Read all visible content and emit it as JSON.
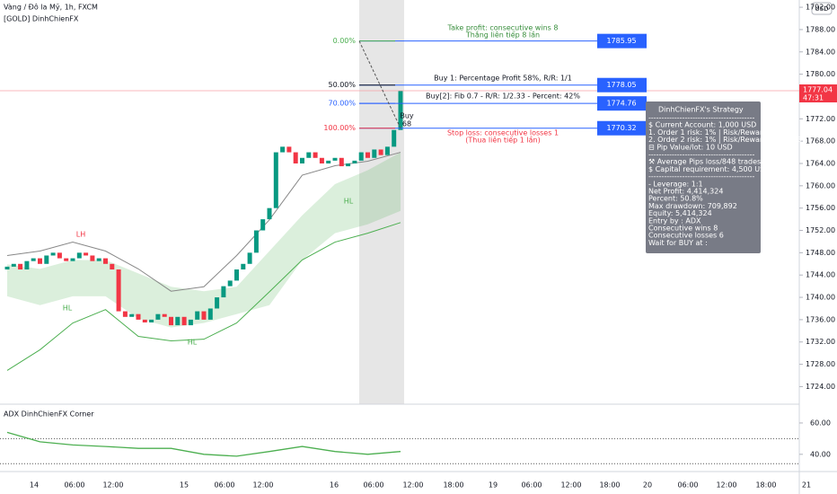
{
  "chart_data": {
    "type": "candlestick",
    "title": "Vàng / Đô la Mỹ, 1h, FXCM",
    "subtitle": "[GOLD] DinhChienFX",
    "currency": "USD",
    "ylim": [
      1720.85,
      1793.3
    ],
    "yticks": [
      {
        "value": 1792,
        "label": "1792.00"
      },
      {
        "value": 1788,
        "label": "1788.00"
      },
      {
        "value": 1784,
        "label": "1784.00"
      },
      {
        "value": 1780,
        "label": "1780.00"
      },
      {
        "value": 1772,
        "label": "1772.00"
      },
      {
        "value": 1768,
        "label": "1768.00"
      },
      {
        "value": 1764,
        "label": "1764.00"
      },
      {
        "value": 1760,
        "label": "1760.00"
      },
      {
        "value": 1756,
        "label": "1756.00"
      },
      {
        "value": 1752,
        "label": "1752.00"
      },
      {
        "value": 1748,
        "label": "1748.00"
      },
      {
        "value": 1744,
        "label": "1744.00"
      },
      {
        "value": 1740,
        "label": "1740.00"
      },
      {
        "value": 1736,
        "label": "1736.00"
      },
      {
        "value": 1732,
        "label": "1732.00"
      },
      {
        "value": 1728,
        "label": "1728.00"
      },
      {
        "value": 1724,
        "label": "1724.00"
      }
    ],
    "x_labels": [
      "14",
      "06:00",
      "12:00",
      "15",
      "06:00",
      "12:00",
      "16",
      "06:00",
      "12:00",
      "18:00",
      "19",
      "06:00",
      "12:00",
      "18:00",
      "20",
      "06:00",
      "12:00",
      "18:00",
      "21"
    ],
    "up_color": "#089981",
    "down_color": "#f23645",
    "open": 1745,
    "closes": [
      1745.5,
      1746,
      1745,
      1746.5,
      1747,
      1746,
      1747.5,
      1748,
      1747,
      1746.5,
      1747,
      1748,
      1747.5,
      1746.5,
      1747,
      1746,
      1745,
      1737.5,
      1736.5,
      1737,
      1736,
      1735.5,
      1736,
      1737,
      1736.5,
      1735,
      1736.5,
      1735,
      1736,
      1737.5,
      1736,
      1738,
      1740,
      1742,
      1743,
      1745,
      1746,
      1748,
      1752,
      1754,
      1756,
      1766,
      1767,
      1766,
      1764,
      1765,
      1766,
      1765,
      1764,
      1764.5,
      1765,
      1763.5,
      1764,
      1764.5,
      1766,
      1765,
      1766.5,
      1765.5,
      1767,
      1770,
      1777.04
    ],
    "last_price_countdown": "47:31",
    "bands": {
      "index": [
        0,
        5,
        10,
        15,
        20,
        25,
        30,
        35,
        40,
        45,
        50,
        55,
        60
      ],
      "upper_line": [
        1747.5,
        1748.3,
        1749.9,
        1748.3,
        1745.1,
        1741.1,
        1741.9,
        1747.5,
        1753.9,
        1761.9,
        1763.6,
        1764.4,
        1766.0
      ],
      "lower_line": [
        1726.9,
        1730.6,
        1735.4,
        1737.8,
        1733.0,
        1732.2,
        1732.5,
        1735.4,
        1741.0,
        1746.7,
        1749.9,
        1751.5,
        1753.4
      ],
      "zone_top": [
        1745.9,
        1745.1,
        1746.7,
        1746.7,
        1744.3,
        1741.9,
        1741.1,
        1741.9,
        1748.3,
        1754.7,
        1760.3,
        1762.8,
        1766.0
      ],
      "zone_bottom": [
        1740.2,
        1738.6,
        1740.2,
        1740.2,
        1736.2,
        1734.6,
        1735.4,
        1737.0,
        1738.6,
        1746.7,
        1751.5,
        1753.1,
        1755.5
      ]
    },
    "levels": [
      {
        "label": "0.00%",
        "value": 1785.95,
        "color": "#4caf50"
      },
      {
        "label": "50.00%",
        "value": 1778.05,
        "color": "#131722"
      },
      {
        "label": "70.00%",
        "value": 1774.76,
        "color": "#2962ff"
      },
      {
        "label": "100.00%",
        "value": 1770.32,
        "color": "#f23645"
      }
    ],
    "annotations": [
      {
        "text": "Take profit: consecutive wins 8",
        "color": "#388e3c"
      },
      {
        "text": "Thắng liên tiếp 8 lần",
        "color": "#388e3c"
      },
      {
        "text": "Buy 1: Percentage Profit 58%, R/R: 1/1",
        "color": "#131722"
      },
      {
        "text": "Buy[2]: Fib 0.7 - R/R: 1/2.33 - Percent: 42%",
        "color": "#131722"
      },
      {
        "text": "Stop loss: consecutive losses 1",
        "color": "#f23645"
      },
      {
        "text": "(Thua liên tiếp 1 lần)",
        "color": "#f23645"
      }
    ],
    "markers": [
      "LH",
      "HL",
      "HL",
      "HL",
      "Buy",
      "68"
    ],
    "adx": {
      "title": "ADX DinhChienFX Corner",
      "ylim": [
        29,
        72
      ],
      "yticks": [
        {
          "value": 60,
          "label": "60.00"
        },
        {
          "value": 40,
          "label": "40.00"
        }
      ],
      "levels": [
        50,
        34
      ],
      "values": [
        54,
        48,
        46,
        45,
        43.8,
        43.8,
        40,
        38.8,
        41.8,
        45,
        41.8,
        40,
        41.8
      ]
    },
    "panel": {
      "title": "DinhChienFX's Strategy",
      "lines": [
        "-----------------------------------------",
        "$ Current Account: 1,000 USD",
        "1. Order 1 risk: 1% | Risk/Reward 1: 1/1",
        "2. Order 2 risk: 1% | Risk/Reward 2: 1/2.33",
        "⊟ Pip Value/lot: 10 USD",
        "-----------------------------------------",
        "⚒ Average Pips loss/848 trades : 75",
        "$ Capital requirement: 4,500 USD",
        "-----------------------------------------",
        "- Leverage: 1:1",
        "Net Profit: 4,414,324",
        "Percent: 50.8%",
        "Max drawdown: 709,892",
        "Equity: 5,414,324",
        "Entry by : ADX",
        "Consecutive wins 8",
        "Consecutive losses 6",
        "Wait for BUY at :"
      ]
    }
  }
}
